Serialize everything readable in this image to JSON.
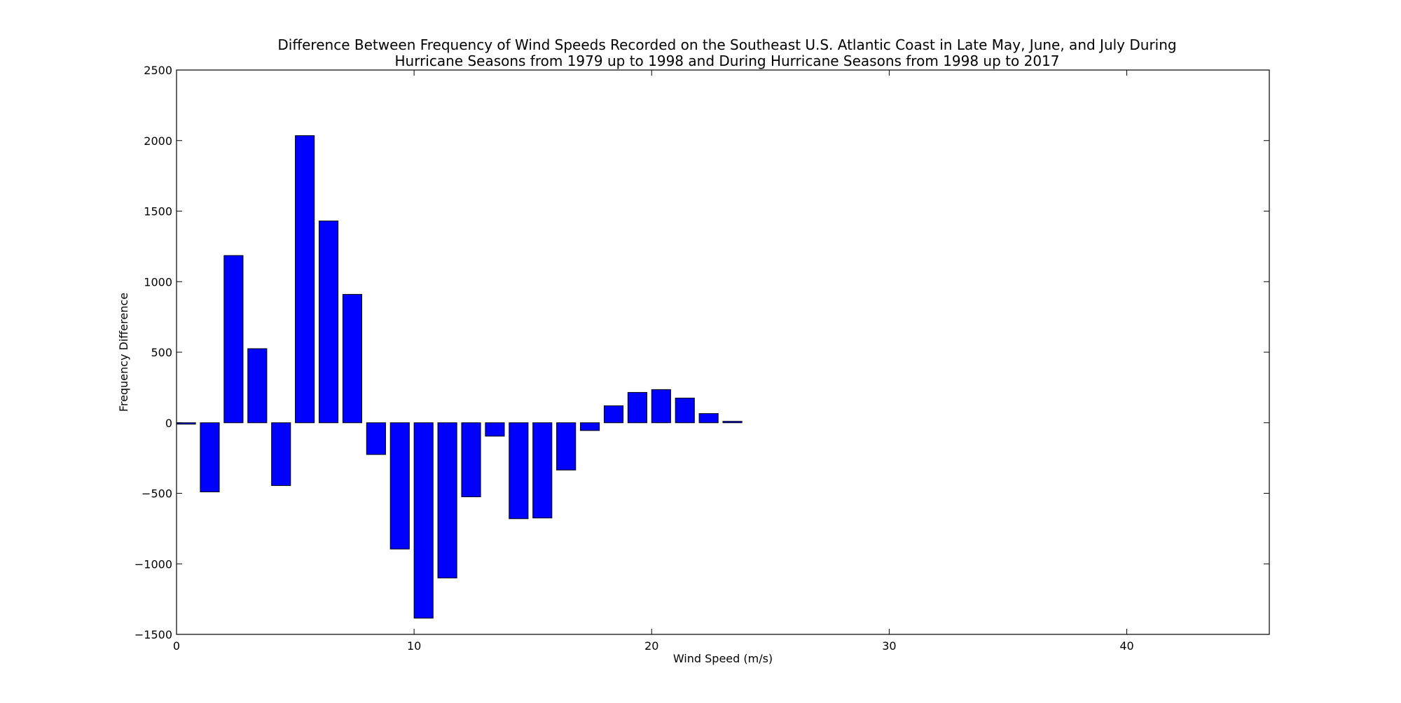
{
  "chart_data": {
    "type": "bar",
    "title_lines": [
      "Difference Between Frequency of Wind Speeds Recorded on the Southeast U.S. Atlantic Coast in Late May, June, and July During",
      "Hurricane Seasons from 1979 up to 1998 and During Hurricane Seasons from 1998 up to 2017"
    ],
    "xlabel": "Wind Speed (m/s)",
    "ylabel": "Frequency Difference",
    "xlim": [
      0,
      46
    ],
    "ylim": [
      -1500,
      2500
    ],
    "xticks": [
      0,
      10,
      20,
      30,
      40
    ],
    "yticks": [
      -1500,
      -1000,
      -500,
      0,
      500,
      1000,
      1500,
      2000,
      2500
    ],
    "ytick_labels": [
      "−1500",
      "−1000",
      "−500",
      "0",
      "500",
      "1000",
      "1500",
      "2000",
      "2500"
    ],
    "grid": false,
    "bar_color": "#0000ff",
    "bar_edge_color": "#000000",
    "bar_width": 0.8,
    "x": [
      0,
      1,
      2,
      3,
      4,
      5,
      6,
      7,
      8,
      9,
      10,
      11,
      12,
      13,
      14,
      15,
      16,
      17,
      18,
      19,
      20,
      21,
      22,
      23,
      24,
      25,
      26,
      27,
      28,
      29,
      30,
      31,
      32,
      33,
      34,
      35,
      36,
      37,
      38,
      39,
      40,
      41,
      42,
      43,
      44
    ],
    "values": [
      -10,
      -490,
      1185,
      525,
      -445,
      2035,
      1430,
      910,
      -225,
      -895,
      -1385,
      -1100,
      -525,
      -95,
      -680,
      -675,
      -335,
      -55,
      120,
      215,
      235,
      175,
      65,
      10,
      0,
      0,
      0,
      0,
      0,
      0,
      0,
      0,
      0,
      0,
      0,
      0,
      0,
      0,
      0,
      0,
      0,
      0,
      0,
      0,
      0
    ]
  }
}
